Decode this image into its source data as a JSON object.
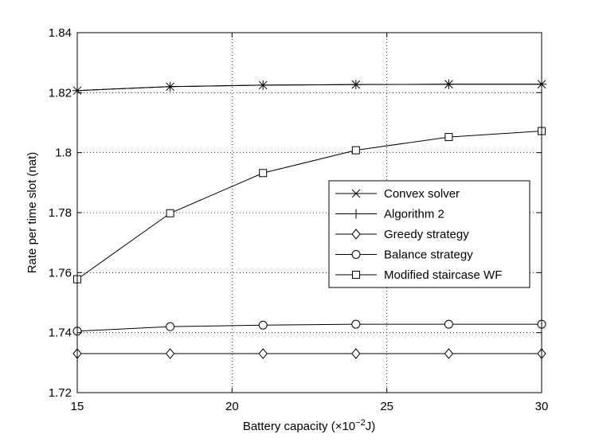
{
  "chart_data": {
    "type": "line",
    "xlabel": "Battery capacity (×10",
    "xlabel_exp": "−2",
    "xlabel_unit": "J)",
    "ylabel": "Rate per time slot (nat)",
    "xlim": [
      15,
      30
    ],
    "ylim": [
      1.72,
      1.84
    ],
    "x_ticks": [
      15,
      20,
      25,
      30
    ],
    "x_tick_labels": [
      "15",
      "20",
      "25",
      "30"
    ],
    "y_ticks": [
      1.72,
      1.74,
      1.76,
      1.78,
      1.8,
      1.82,
      1.84
    ],
    "y_tick_labels": [
      "1.72",
      "1.74",
      "1.76",
      "1.78",
      "1.8",
      "1.82",
      "1.84"
    ],
    "grid": true,
    "legend_position": "center-right",
    "x": [
      15,
      18,
      21,
      24,
      27,
      30
    ],
    "series": [
      {
        "name": "Convex solver",
        "marker": "x",
        "values": [
          1.8207,
          1.822,
          1.8225,
          1.8227,
          1.8228,
          1.8228
        ]
      },
      {
        "name": "Algorithm 2",
        "marker": "plus",
        "values": [
          1.8207,
          1.822,
          1.8225,
          1.8227,
          1.8228,
          1.8228
        ]
      },
      {
        "name": "Greedy strategy",
        "marker": "diamond",
        "values": [
          1.733,
          1.733,
          1.733,
          1.733,
          1.733,
          1.733
        ]
      },
      {
        "name": "Balance strategy",
        "marker": "circle",
        "values": [
          1.7405,
          1.742,
          1.7425,
          1.7428,
          1.7428,
          1.7428
        ]
      },
      {
        "name": "Modified staircase WF",
        "marker": "square",
        "values": [
          1.7578,
          1.7798,
          1.7932,
          1.8008,
          1.8052,
          1.8072
        ]
      }
    ]
  }
}
